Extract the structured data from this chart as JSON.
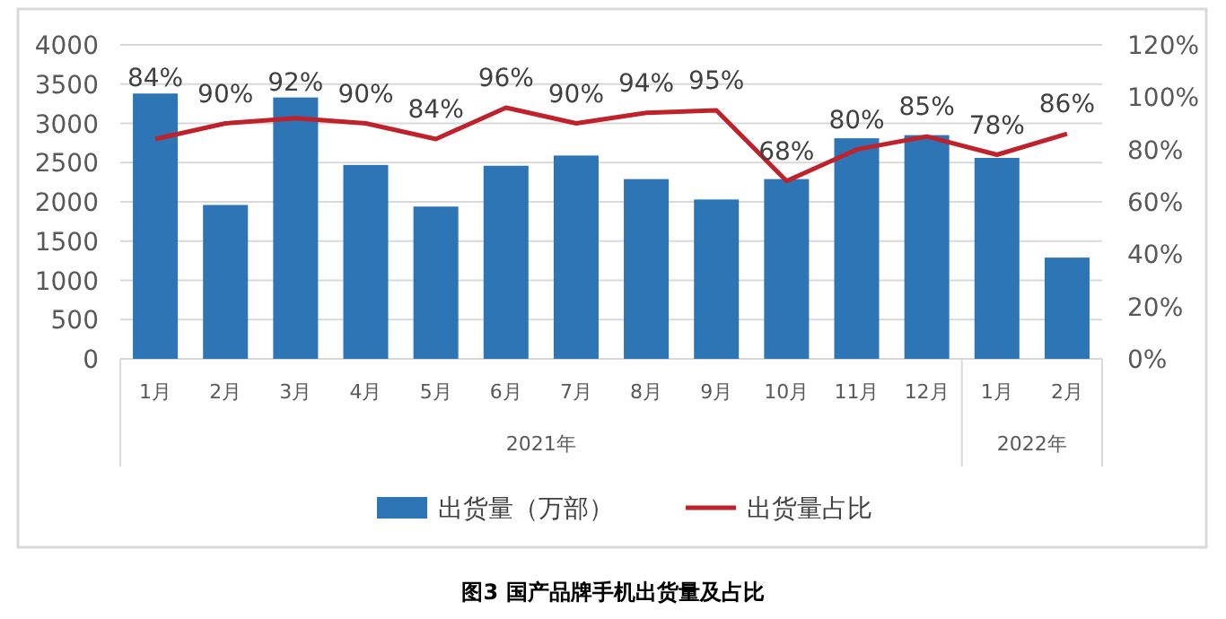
{
  "chart_data": {
    "type": "bar",
    "title": "图3  国产品牌手机出货量及占比",
    "categories": [
      "1月",
      "2月",
      "3月",
      "4月",
      "5月",
      "6月",
      "7月",
      "8月",
      "9月",
      "10月",
      "11月",
      "12月",
      "1月",
      "2月"
    ],
    "series": [
      {
        "name": "出货量（万部）",
        "color": "#2e75b6",
        "values": [
          3380,
          1960,
          3330,
          2470,
          1940,
          2460,
          2590,
          2290,
          2030,
          2290,
          2810,
          2850,
          2560,
          1290
        ]
      },
      {
        "name": "出货量占比",
        "type": "line",
        "axis": "y2",
        "color": "#c0222c",
        "values": [
          84,
          90,
          92,
          90,
          84,
          96,
          90,
          94,
          95,
          68,
          80,
          85,
          78,
          86
        ],
        "value_labels": [
          "84%",
          "90%",
          "92%",
          "90%",
          "84%",
          "96%",
          "90%",
          "94%",
          "95%",
          "68%",
          "80%",
          "85%",
          "78%",
          "86%"
        ]
      }
    ],
    "annotations": [
      "2021年",
      "2022年"
    ],
    "ylim": [
      0,
      4000
    ],
    "yticks": [
      0,
      500,
      1000,
      1500,
      2000,
      2500,
      3000,
      3500,
      4000
    ],
    "y2lim": [
      0,
      120
    ],
    "y2ticks": [
      {
        "value": 0,
        "label": "0%"
      },
      {
        "value": 20,
        "label": "20%"
      },
      {
        "value": 40,
        "label": "40%"
      },
      {
        "value": 60,
        "label": "60%"
      },
      {
        "value": 80,
        "label": "80%"
      },
      {
        "value": 100,
        "label": "100%"
      },
      {
        "value": 120,
        "label": "120%"
      }
    ],
    "grid": "y",
    "legend": "bottom",
    "marker": "none",
    "line_style": "solid"
  }
}
